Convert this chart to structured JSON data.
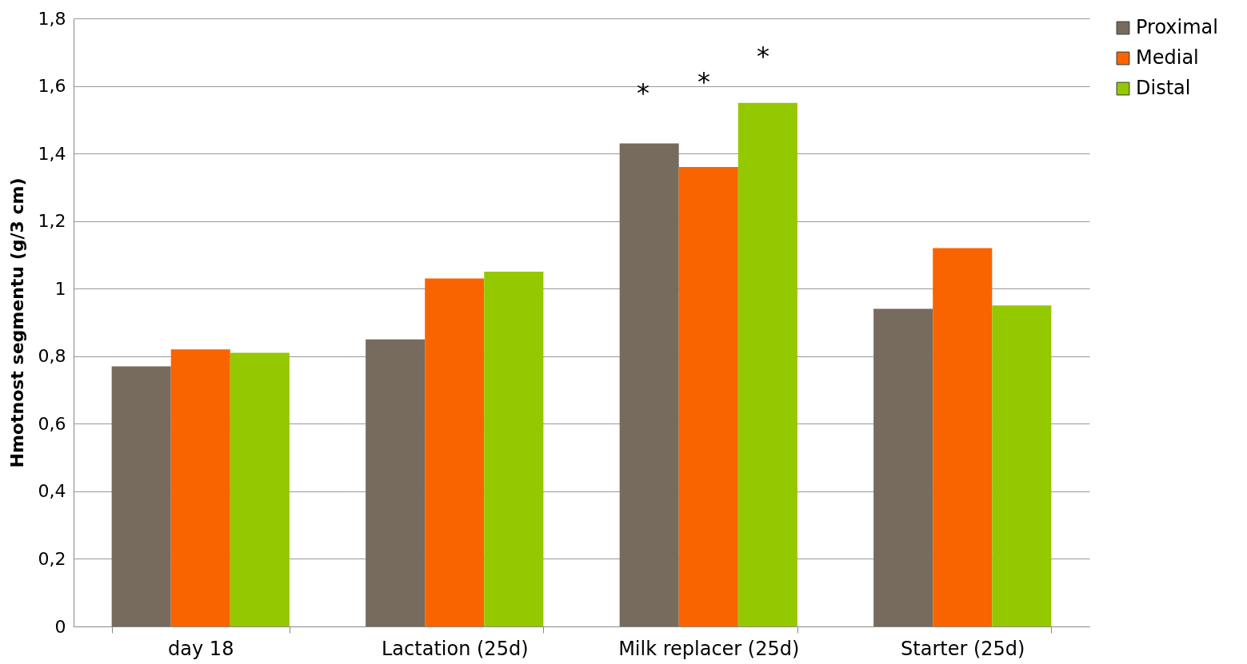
{
  "chart_data": {
    "type": "bar",
    "ylabel": "Hmotnost segmentu (g/3 cm)",
    "categories": [
      "day 18",
      "Lactation (25d)",
      "Milk replacer (25d)",
      "Starter (25d)"
    ],
    "series": [
      {
        "name": "Proximal",
        "color": "#776b5d",
        "values": [
          0.77,
          0.85,
          1.43,
          0.94
        ]
      },
      {
        "name": "Medial",
        "color": "#f96400",
        "values": [
          0.82,
          1.03,
          1.36,
          1.12
        ]
      },
      {
        "name": "Distal",
        "color": "#94c800",
        "values": [
          0.81,
          1.05,
          1.55,
          0.95
        ]
      }
    ],
    "ylim": [
      0,
      1.8
    ],
    "yticks": [
      {
        "value": 0,
        "label": "0"
      },
      {
        "value": 0.2,
        "label": "0,2"
      },
      {
        "value": 0.4,
        "label": "0,4"
      },
      {
        "value": 0.6,
        "label": "0,6"
      },
      {
        "value": 0.8,
        "label": "0,8"
      },
      {
        "value": 1,
        "label": "1"
      },
      {
        "value": 1.2,
        "label": "1,2"
      },
      {
        "value": 1.4,
        "label": "1,4"
      },
      {
        "value": 1.6,
        "label": "1,6"
      },
      {
        "value": 1.8,
        "label": "1,8"
      }
    ],
    "grid": "y",
    "legend": "right",
    "annotations": [
      "*",
      "*",
      "*"
    ]
  }
}
